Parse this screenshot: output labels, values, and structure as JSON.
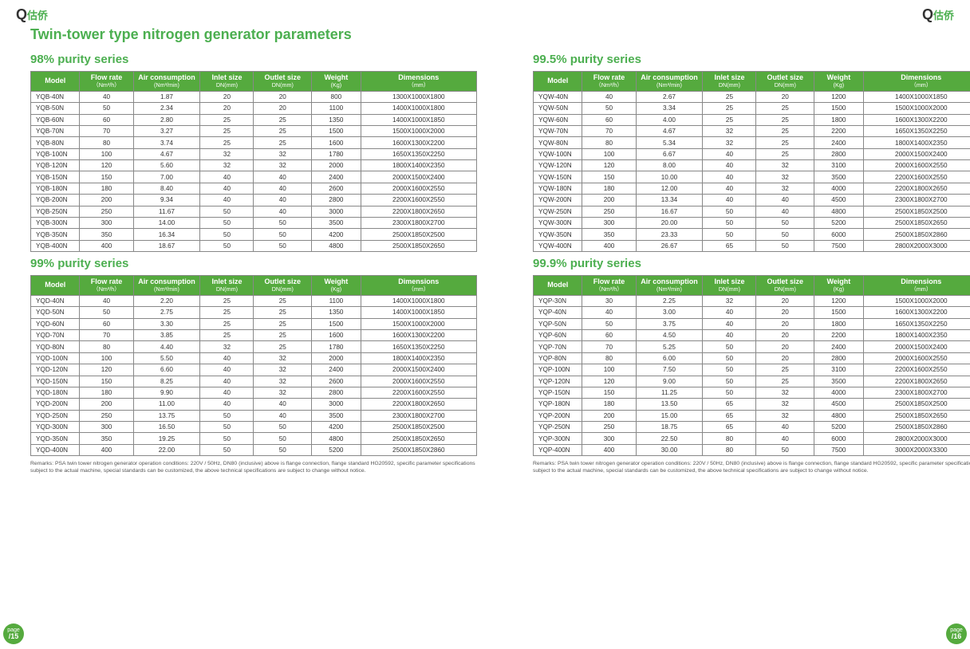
{
  "logoText": "估侨",
  "pageTitle": "Twin-tower type nitrogen generator parameters",
  "columns": [
    {
      "main": "Model",
      "sub": ""
    },
    {
      "main": "Flow rate",
      "sub": "（Nm³/h）"
    },
    {
      "main": "Air consumption",
      "sub": "(Nm³/min)"
    },
    {
      "main": "Inlet size",
      "sub": "DN(mm)"
    },
    {
      "main": "Outlet size",
      "sub": "DN(mm)"
    },
    {
      "main": "Weight",
      "sub": "(Kg)"
    },
    {
      "main": "Dimensions",
      "sub": "（mm）"
    }
  ],
  "series": [
    {
      "title": "98% purity series",
      "rows": [
        [
          "YQB-40N",
          "40",
          "1.87",
          "20",
          "20",
          "800",
          "1300X1000X1800"
        ],
        [
          "YQB-50N",
          "50",
          "2.34",
          "20",
          "20",
          "1100",
          "1400X1000X1800"
        ],
        [
          "YQB-60N",
          "60",
          "2.80",
          "25",
          "25",
          "1350",
          "1400X1000X1850"
        ],
        [
          "YQB-70N",
          "70",
          "3.27",
          "25",
          "25",
          "1500",
          "1500X1000X2000"
        ],
        [
          "YQB-80N",
          "80",
          "3.74",
          "25",
          "25",
          "1600",
          "1600X1300X2200"
        ],
        [
          "YQB-100N",
          "100",
          "4.67",
          "32",
          "32",
          "1780",
          "1650X1350X2250"
        ],
        [
          "YQB-120N",
          "120",
          "5.60",
          "32",
          "32",
          "2000",
          "1800X1400X2350"
        ],
        [
          "YQB-150N",
          "150",
          "7.00",
          "40",
          "40",
          "2400",
          "2000X1500X2400"
        ],
        [
          "YQB-180N",
          "180",
          "8.40",
          "40",
          "40",
          "2600",
          "2000X1600X2550"
        ],
        [
          "YQB-200N",
          "200",
          "9.34",
          "40",
          "40",
          "2800",
          "2200X1600X2550"
        ],
        [
          "YQB-250N",
          "250",
          "11.67",
          "50",
          "40",
          "3000",
          "2200X1800X2650"
        ],
        [
          "YQB-300N",
          "300",
          "14.00",
          "50",
          "50",
          "3500",
          "2300X1800X2700"
        ],
        [
          "YQB-350N",
          "350",
          "16.34",
          "50",
          "50",
          "4200",
          "2500X1850X2500"
        ],
        [
          "YQB-400N",
          "400",
          "18.67",
          "50",
          "50",
          "4800",
          "2500X1850X2650"
        ]
      ]
    },
    {
      "title": "99% purity series",
      "rows": [
        [
          "YQD-40N",
          "40",
          "2.20",
          "25",
          "25",
          "1100",
          "1400X1000X1800"
        ],
        [
          "YQD-50N",
          "50",
          "2.75",
          "25",
          "25",
          "1350",
          "1400X1000X1850"
        ],
        [
          "YQD-60N",
          "60",
          "3.30",
          "25",
          "25",
          "1500",
          "1500X1000X2000"
        ],
        [
          "YQD-70N",
          "70",
          "3.85",
          "25",
          "25",
          "1600",
          "1600X1300X2200"
        ],
        [
          "YQD-80N",
          "80",
          "4.40",
          "32",
          "25",
          "1780",
          "1650X1350X2250"
        ],
        [
          "YQD-100N",
          "100",
          "5.50",
          "40",
          "32",
          "2000",
          "1800X1400X2350"
        ],
        [
          "YQD-120N",
          "120",
          "6.60",
          "40",
          "32",
          "2400",
          "2000X1500X2400"
        ],
        [
          "YQD-150N",
          "150",
          "8.25",
          "40",
          "32",
          "2600",
          "2000X1600X2550"
        ],
        [
          "YQD-180N",
          "180",
          "9.90",
          "40",
          "32",
          "2800",
          "2200X1600X2550"
        ],
        [
          "YQD-200N",
          "200",
          "11.00",
          "40",
          "40",
          "3000",
          "2200X1800X2650"
        ],
        [
          "YQD-250N",
          "250",
          "13.75",
          "50",
          "40",
          "3500",
          "2300X1800X2700"
        ],
        [
          "YQD-300N",
          "300",
          "16.50",
          "50",
          "50",
          "4200",
          "2500X1850X2500"
        ],
        [
          "YQD-350N",
          "350",
          "19.25",
          "50",
          "50",
          "4800",
          "2500X1850X2650"
        ],
        [
          "YQD-400N",
          "400",
          "22.00",
          "50",
          "50",
          "5200",
          "2500X1850X2860"
        ]
      ]
    },
    {
      "title": "99.5% purity series",
      "rows": [
        [
          "YQW-40N",
          "40",
          "2.67",
          "25",
          "20",
          "1200",
          "1400X1000X1850"
        ],
        [
          "YQW-50N",
          "50",
          "3.34",
          "25",
          "25",
          "1500",
          "1500X1000X2000"
        ],
        [
          "YQW-60N",
          "60",
          "4.00",
          "25",
          "25",
          "1800",
          "1600X1300X2200"
        ],
        [
          "YQW-70N",
          "70",
          "4.67",
          "32",
          "25",
          "2200",
          "1650X1350X2250"
        ],
        [
          "YQW-80N",
          "80",
          "5.34",
          "32",
          "25",
          "2400",
          "1800X1400X2350"
        ],
        [
          "YQW-100N",
          "100",
          "6.67",
          "40",
          "25",
          "2800",
          "2000X1500X2400"
        ],
        [
          "YQW-120N",
          "120",
          "8.00",
          "40",
          "32",
          "3100",
          "2000X1600X2550"
        ],
        [
          "YQW-150N",
          "150",
          "10.00",
          "40",
          "32",
          "3500",
          "2200X1600X2550"
        ],
        [
          "YQW-180N",
          "180",
          "12.00",
          "40",
          "32",
          "4000",
          "2200X1800X2650"
        ],
        [
          "YQW-200N",
          "200",
          "13.34",
          "40",
          "40",
          "4500",
          "2300X1800X2700"
        ],
        [
          "YQW-250N",
          "250",
          "16.67",
          "50",
          "40",
          "4800",
          "2500X1850X2500"
        ],
        [
          "YQW-300N",
          "300",
          "20.00",
          "50",
          "50",
          "5200",
          "2500X1850X2650"
        ],
        [
          "YQW-350N",
          "350",
          "23.33",
          "50",
          "50",
          "6000",
          "2500X1850X2860"
        ],
        [
          "YQW-400N",
          "400",
          "26.67",
          "65",
          "50",
          "7500",
          "2800X2000X3000"
        ]
      ]
    },
    {
      "title": "99.9% purity series",
      "rows": [
        [
          "YQP-30N",
          "30",
          "2.25",
          "32",
          "20",
          "1200",
          "1500X1000X2000"
        ],
        [
          "YQP-40N",
          "40",
          "3.00",
          "40",
          "20",
          "1500",
          "1600X1300X2200"
        ],
        [
          "YQP-50N",
          "50",
          "3.75",
          "40",
          "20",
          "1800",
          "1650X1350X2250"
        ],
        [
          "YQP-60N",
          "60",
          "4.50",
          "40",
          "20",
          "2200",
          "1800X1400X2350"
        ],
        [
          "YQP-70N",
          "70",
          "5.25",
          "50",
          "20",
          "2400",
          "2000X1500X2400"
        ],
        [
          "YQP-80N",
          "80",
          "6.00",
          "50",
          "20",
          "2800",
          "2000X1600X2550"
        ],
        [
          "YQP-100N",
          "100",
          "7.50",
          "50",
          "25",
          "3100",
          "2200X1600X2550"
        ],
        [
          "YQP-120N",
          "120",
          "9.00",
          "50",
          "25",
          "3500",
          "2200X1800X2650"
        ],
        [
          "YQP-150N",
          "150",
          "11.25",
          "50",
          "32",
          "4000",
          "2300X1800X2700"
        ],
        [
          "YQP-180N",
          "180",
          "13.50",
          "65",
          "32",
          "4500",
          "2500X1850X2500"
        ],
        [
          "YQP-200N",
          "200",
          "15.00",
          "65",
          "32",
          "4800",
          "2500X1850X2650"
        ],
        [
          "YQP-250N",
          "250",
          "18.75",
          "65",
          "40",
          "5200",
          "2500X1850X2860"
        ],
        [
          "YQP-300N",
          "300",
          "22.50",
          "80",
          "40",
          "6000",
          "2800X2000X3000"
        ],
        [
          "YQP-400N",
          "400",
          "30.00",
          "80",
          "50",
          "7500",
          "3000X2000X3300"
        ]
      ]
    }
  ],
  "remarks": "Remarks: PSA twin tower nitrogen generator operation conditions: 220V / 50Hz, DN80 (inclusive) above is flange connection, flange standard HG20592, specific parameter specifications subject to the actual machine, special standards can be customized, the above technical specifications are subject to change without notice.",
  "page": {
    "label": "page",
    "left": "/15",
    "right": "/16"
  }
}
